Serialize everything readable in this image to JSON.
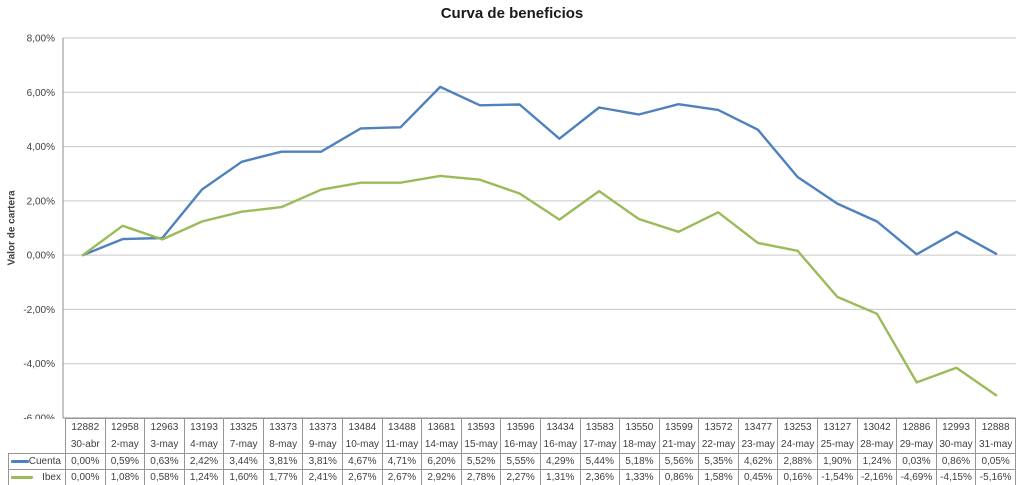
{
  "chart_data": {
    "type": "line",
    "title": "Curva de beneficios",
    "xlabel": "",
    "ylabel": "Valor de cartera",
    "ylim": [
      -6,
      8
    ],
    "yticks": [
      8,
      6,
      4,
      2,
      0,
      -2,
      -4,
      -6
    ],
    "ytick_labels": [
      "8,00%",
      "6,00%",
      "4,00%",
      "2,00%",
      "0,00%",
      "-2,00%",
      "-4,00%",
      "-6,00%"
    ],
    "grid": true,
    "legend_position": "data-table-left",
    "category_values": [
      "12882",
      "12958",
      "12963",
      "13193",
      "13325",
      "13373",
      "13373",
      "13484",
      "13488",
      "13681",
      "13593",
      "13596",
      "13434",
      "13583",
      "13550",
      "13599",
      "13572",
      "13477",
      "13253",
      "13127",
      "13042",
      "12886",
      "12993",
      "12888"
    ],
    "category_dates": [
      "30-abr",
      "2-may",
      "3-may",
      "4-may",
      "7-may",
      "8-may",
      "9-may",
      "10-may",
      "11-may",
      "14-may",
      "15-may",
      "16-may",
      "16-may",
      "17-may",
      "18-may",
      "21-may",
      "22-may",
      "23-may",
      "24-may",
      "25-may",
      "28-may",
      "29-may",
      "30-may",
      "31-may"
    ],
    "series": [
      {
        "name": "Cuenta",
        "color": "#4F81BD",
        "values": [
          0.0,
          0.59,
          0.63,
          2.42,
          3.44,
          3.81,
          3.81,
          4.67,
          4.71,
          6.2,
          5.52,
          5.55,
          4.29,
          5.44,
          5.18,
          5.56,
          5.35,
          4.62,
          2.88,
          1.9,
          1.24,
          0.03,
          0.86,
          0.05
        ],
        "labels": [
          "0,00%",
          "0,59%",
          "0,63%",
          "2,42%",
          "3,44%",
          "3,81%",
          "3,81%",
          "4,67%",
          "4,71%",
          "6,20%",
          "5,52%",
          "5,55%",
          "4,29%",
          "5,44%",
          "5,18%",
          "5,56%",
          "5,35%",
          "4,62%",
          "2,88%",
          "1,90%",
          "1,24%",
          "0,03%",
          "0,86%",
          "0,05%"
        ]
      },
      {
        "name": "Ibex",
        "color": "#9BBB59",
        "values": [
          0.0,
          1.08,
          0.58,
          1.24,
          1.6,
          1.77,
          2.41,
          2.67,
          2.67,
          2.92,
          2.78,
          2.27,
          1.31,
          2.36,
          1.33,
          0.86,
          1.58,
          0.45,
          0.16,
          -1.54,
          -2.16,
          -4.69,
          -4.15,
          -5.16
        ],
        "labels": [
          "0,00%",
          "1,08%",
          "0,58%",
          "1,24%",
          "1,60%",
          "1,77%",
          "2,41%",
          "2,67%",
          "2,67%",
          "2,92%",
          "2,78%",
          "2,27%",
          "1,31%",
          "2,36%",
          "1,33%",
          "0,86%",
          "1,58%",
          "0,45%",
          "0,16%",
          "-1,54%",
          "-2,16%",
          "-4,69%",
          "-4,15%",
          "-5,16%"
        ]
      }
    ]
  },
  "colors": {
    "gridline": "#C6C6C6",
    "axis": "#8C8C8C",
    "table_border": "#969696",
    "text": "#3F3F3F"
  }
}
